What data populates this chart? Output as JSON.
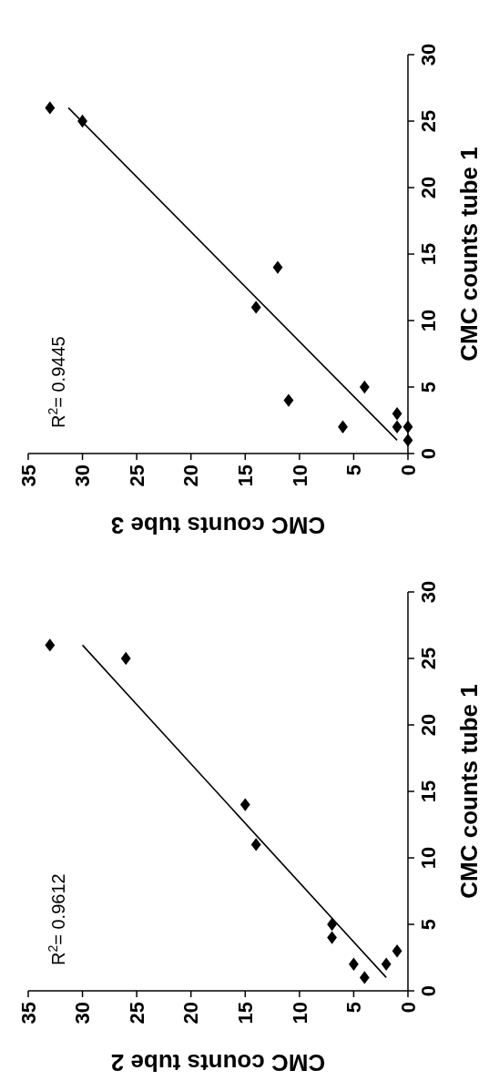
{
  "chart_data": [
    {
      "type": "scatter",
      "xlabel": "CMC counts tube 3",
      "ylabel": "CMC counts tube 1",
      "xlim": [
        35,
        0
      ],
      "ylim": [
        0,
        30
      ],
      "xticks": [
        35,
        30,
        25,
        20,
        15,
        10,
        5,
        0
      ],
      "yticks": [
        0,
        5,
        10,
        15,
        20,
        25,
        30
      ],
      "annotations": [
        "R$^{2}$= 0.9445"
      ],
      "x": [
        33,
        30,
        12,
        14,
        11,
        6,
        4,
        1,
        1,
        0,
        0
      ],
      "series": [
        {
          "color": "#000000",
          "marker": "diamond",
          "values": [
            26,
            25,
            14,
            11,
            4,
            2,
            5,
            3,
            2,
            2,
            1
          ]
        },
        {
          "type": "line",
          "color": "#000000",
          "x": [
            1,
            31.3
          ],
          "values": [
            1,
            26
          ]
        }
      ]
    },
    {
      "type": "scatter",
      "xlabel": "CMC counts tube 2",
      "ylabel": "CMC counts tube 1",
      "xlim": [
        35,
        0
      ],
      "ylim": [
        0,
        30
      ],
      "xticks": [
        35,
        30,
        25,
        20,
        15,
        10,
        5,
        0
      ],
      "yticks": [
        0,
        5,
        10,
        15,
        20,
        25,
        30
      ],
      "annotations": [
        "R$^{2}$= 0.9612"
      ],
      "x": [
        33,
        26,
        15,
        14,
        7,
        7,
        5,
        4,
        2,
        1
      ],
      "series": [
        {
          "color": "#000000",
          "marker": "diamond",
          "values": [
            26,
            25,
            14,
            11,
            5,
            4,
            2,
            1,
            2,
            3
          ]
        },
        {
          "type": "line",
          "color": "#000000",
          "x": [
            2,
            30
          ],
          "values": [
            1,
            26
          ]
        }
      ]
    }
  ]
}
